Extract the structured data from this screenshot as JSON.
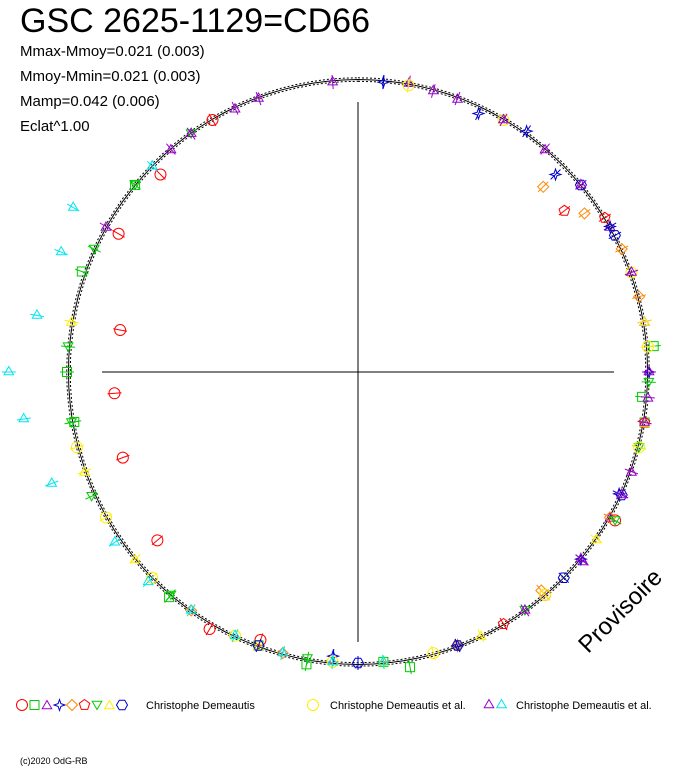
{
  "header": {
    "title": "GSC 2625-1129=CD66",
    "stats": [
      "Mmax-Mmoy=0.021 (0.003)",
      "Mmoy-Mmin=0.021 (0.003)",
      "Mamp=0.042 (0.006)",
      "Eclat^1.00"
    ]
  },
  "watermark": "Provisoire",
  "credit": "(c)2020 OdG-RB",
  "chart_data": {
    "type": "scatter",
    "projection": "polar",
    "title": "GSC 2625-1129=CD66",
    "mean_radius": 1.0,
    "amplitude": 0.042,
    "grid": true,
    "legend_position": "bottom",
    "model_curves": [
      {
        "name": "",
        "radius_offset": 0.0
      },
      {
        "name": "",
        "radius_offset": 0.006
      },
      {
        "name": "",
        "radius_offset": -0.006
      }
    ],
    "series": [
      {
        "name": "Christophe Demeautis",
        "marker": "circle",
        "color": "#ff0000",
        "points": [
          [
            200,
            0.98
          ],
          [
            210,
            1.02
          ],
          [
            230,
            0.9
          ],
          [
            250,
            0.86
          ],
          [
            265,
            0.84
          ],
          [
            280,
            0.83
          ],
          [
            300,
            0.95
          ],
          [
            315,
            0.96
          ],
          [
            330,
            1.0
          ],
          [
            140,
            1.0
          ],
          [
            120,
            1.02
          ]
        ]
      },
      {
        "name": "Christophe Demeautis",
        "marker": "square",
        "color": "#00cc00",
        "points": [
          [
            100,
            1.0
          ],
          [
            95,
            0.98
          ],
          [
            85,
            1.02
          ],
          [
            170,
            1.03
          ],
          [
            175,
            1.0
          ],
          [
            190,
            1.02
          ],
          [
            200,
            1.0
          ],
          [
            220,
            1.01
          ],
          [
            260,
            0.99
          ],
          [
            270,
            1.0
          ],
          [
            290,
            1.01
          ],
          [
            310,
            1.0
          ]
        ]
      },
      {
        "name": "Christophe Demeautis",
        "marker": "triangle-up",
        "color": "#9900cc",
        "points": [
          [
            335,
            1.0
          ],
          [
            320,
            1.0
          ],
          [
            300,
            1.0
          ],
          [
            10,
            1.01
          ],
          [
            20,
            1.0
          ],
          [
            40,
            1.0
          ],
          [
            60,
            1.0
          ],
          [
            80,
            1.0
          ],
          [
            95,
            1.0
          ],
          [
            110,
            1.0
          ],
          [
            120,
            1.0
          ],
          [
            130,
            1.01
          ]
        ]
      },
      {
        "name": "Christophe Demeautis",
        "marker": "star4",
        "color": "#0000cc",
        "points": [
          [
            5,
            1.0
          ],
          [
            25,
            0.98
          ],
          [
            35,
            1.01
          ],
          [
            45,
            0.96
          ],
          [
            60,
            1.0
          ],
          [
            90,
            1.0
          ],
          [
            115,
            0.99
          ],
          [
            130,
            1.0
          ],
          [
            160,
            1.0
          ],
          [
            185,
            0.98
          ]
        ]
      },
      {
        "name": "Christophe Demeautis",
        "marker": "diamond",
        "color": "#ff8800",
        "points": [
          [
            45,
            0.9
          ],
          [
            55,
            0.95
          ],
          [
            65,
            1.0
          ],
          [
            75,
            1.0
          ],
          [
            120,
            1.0
          ],
          [
            140,
            0.98
          ],
          [
            160,
            1.0
          ],
          [
            195,
            1.0
          ],
          [
            215,
            1.0
          ]
        ]
      },
      {
        "name": "Christophe Demeautis",
        "marker": "pentagon",
        "color": "#ff0000",
        "points": [
          [
            52,
            0.9
          ],
          [
            58,
            1.0
          ],
          [
            100,
            1.0
          ],
          [
            150,
            1.0
          ]
        ]
      },
      {
        "name": "Christophe Demeautis",
        "marker": "triangle-down",
        "color": "#00cc00",
        "points": [
          [
            92,
            1.0
          ],
          [
            105,
            1.0
          ],
          [
            120,
            1.02
          ],
          [
            145,
            1.0
          ],
          [
            190,
            1.0
          ],
          [
            220,
            1.0
          ],
          [
            245,
            1.01
          ],
          [
            260,
            1.0
          ],
          [
            275,
            1.0
          ],
          [
            295,
            1.0
          ],
          [
            310,
            1.0
          ],
          [
            325,
            1.0
          ]
        ]
      },
      {
        "name": "Christophe Demeautis",
        "marker": "triangle-up",
        "color": "#ffee00",
        "points": [
          [
            80,
            1.0
          ],
          [
            100,
            1.0
          ],
          [
            125,
            1.0
          ],
          [
            155,
            1.0
          ],
          [
            175,
            1.0
          ],
          [
            200,
            1.0
          ],
          [
            230,
            1.0
          ],
          [
            250,
            1.0
          ],
          [
            280,
            1.0
          ]
        ]
      },
      {
        "name": "Christophe Demeautis",
        "marker": "hexagon",
        "color": "#0000cc",
        "points": [
          [
            50,
            1.0
          ],
          [
            62,
            1.0
          ],
          [
            115,
            1.0
          ],
          [
            135,
            1.0
          ],
          [
            160,
            1.0
          ],
          [
            180,
            1.0
          ],
          [
            200,
            1.0
          ]
        ]
      },
      {
        "name": "Christophe Demeautis et al.",
        "marker": "circle-open",
        "color": "#ffee00",
        "points": [
          [
            10,
            1.0
          ],
          [
            30,
            1.0
          ],
          [
            70,
            1.0
          ],
          [
            85,
            1.0
          ],
          [
            105,
            1.0
          ],
          [
            140,
            1.0
          ],
          [
            165,
            1.0
          ],
          [
            185,
            1.0
          ],
          [
            205,
            1.0
          ],
          [
            225,
            1.0
          ],
          [
            240,
            1.0
          ],
          [
            255,
            1.0
          ]
        ]
      },
      {
        "name": "Christophe Demeautis et al.",
        "marker": "triangle-star",
        "color": "#9900cc",
        "points": [
          [
            355,
            1.0
          ],
          [
            340,
            1.0
          ],
          [
            325,
            1.0
          ],
          [
            15,
            1.0
          ],
          [
            30,
            1.0
          ],
          [
            50,
            1.0
          ],
          [
            70,
            1.0
          ],
          [
            90,
            1.0
          ],
          [
            100,
            1.0
          ],
          [
            115,
            1.0
          ],
          [
            130,
            1.0
          ],
          [
            145,
            1.0
          ]
        ]
      },
      {
        "name": "Christophe Demeautis et al.",
        "marker": "triangle-star",
        "color": "#00e5ee",
        "points": [
          [
            250,
            1.12
          ],
          [
            262,
            1.16
          ],
          [
            270,
            1.2
          ],
          [
            280,
            1.12
          ],
          [
            292,
            1.1
          ],
          [
            300,
            1.13
          ],
          [
            315,
            1.0
          ],
          [
            235,
            1.02
          ],
          [
            225,
            1.02
          ],
          [
            215,
            1.0
          ],
          [
            205,
            1.0
          ],
          [
            195,
            1.0
          ],
          [
            185,
            1.0
          ],
          [
            175,
            1.0
          ]
        ]
      }
    ]
  },
  "legend": {
    "entries": [
      {
        "label": "Christophe Demeautis",
        "markers": [
          {
            "shape": "circle",
            "color": "#ff0000"
          },
          {
            "shape": "square",
            "color": "#00cc00"
          },
          {
            "shape": "triangle-up",
            "color": "#9900cc"
          },
          {
            "shape": "star4",
            "color": "#0000cc"
          },
          {
            "shape": "diamond",
            "color": "#ff8800"
          },
          {
            "shape": "pentagon",
            "color": "#ff0000"
          },
          {
            "shape": "triangle-down",
            "color": "#00cc00"
          },
          {
            "shape": "triangle-up",
            "color": "#ffee00"
          },
          {
            "shape": "hexagon",
            "color": "#0000cc"
          }
        ]
      },
      {
        "label": "Christophe Demeautis et al.",
        "markers": [
          {
            "shape": "circle-open",
            "color": "#ffee00"
          }
        ]
      },
      {
        "label": "Christophe Demeautis et al.",
        "markers": [
          {
            "shape": "triangle-star",
            "color": "#9900cc"
          },
          {
            "shape": "triangle-star",
            "color": "#00e5ee"
          }
        ]
      }
    ]
  }
}
